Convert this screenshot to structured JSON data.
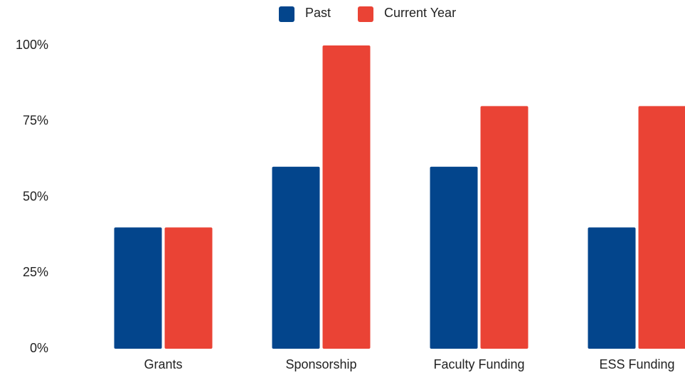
{
  "chart_data": {
    "type": "bar",
    "categories": [
      "Grants",
      "Sponsorship",
      "Faculty Funding",
      "ESS Funding"
    ],
    "series": [
      {
        "name": "Past",
        "color": "#03458c",
        "values": [
          40,
          60,
          60,
          40
        ]
      },
      {
        "name": "Current Year",
        "color": "#ea4335",
        "values": [
          40,
          100,
          80,
          80
        ]
      }
    ],
    "ylim": [
      0,
      100
    ],
    "yticks": [
      {
        "value": 0,
        "label": "0%"
      },
      {
        "value": 25,
        "label": "25%"
      },
      {
        "value": 50,
        "label": "50%"
      },
      {
        "value": 75,
        "label": "75%"
      },
      {
        "value": 100,
        "label": "100%"
      }
    ],
    "legend": "top",
    "grid": false
  }
}
